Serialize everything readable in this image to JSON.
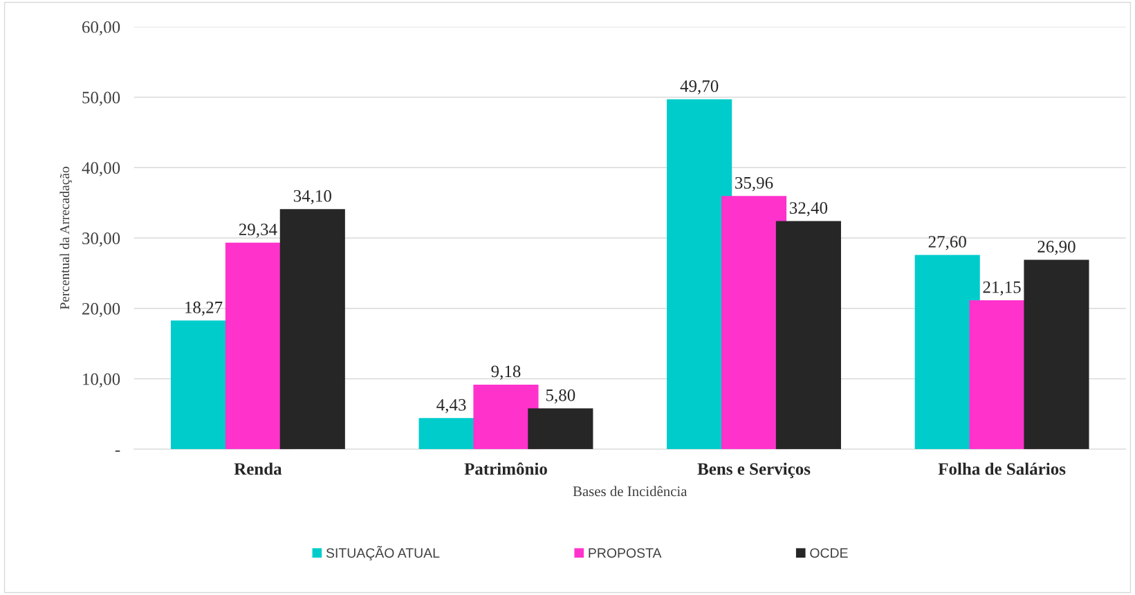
{
  "chart_data": {
    "type": "bar",
    "xlabel": "Bases de Incidência",
    "ylabel": "Percentual da Arrecadação",
    "categories": [
      "Renda",
      "Patrimônio",
      "Bens e Serviços",
      "Folha de Salários"
    ],
    "series": [
      {
        "name": "SITUAÇÃO ATUAL",
        "color": "#00cccc",
        "values": [
          18.27,
          4.43,
          49.7,
          27.6
        ],
        "value_labels": [
          "18,27",
          "4,43",
          "49,70",
          "27,60"
        ]
      },
      {
        "name": "PROPOSTA",
        "color": "#ff33cc",
        "values": [
          29.34,
          9.18,
          35.96,
          21.15
        ],
        "value_labels": [
          "29,34",
          "9,18",
          "35,96",
          "21,15"
        ]
      },
      {
        "name": "OCDE",
        "color": "#262626",
        "values": [
          34.1,
          5.8,
          32.4,
          26.9
        ],
        "value_labels": [
          "34,10",
          "5,80",
          "32,40",
          "26,90"
        ]
      }
    ],
    "ylim": [
      0,
      60
    ],
    "yticks": [
      {
        "value": 0,
        "label": "-"
      },
      {
        "value": 10,
        "label": "10,00"
      },
      {
        "value": 20,
        "label": "20,00"
      },
      {
        "value": 30,
        "label": "30,00"
      },
      {
        "value": 40,
        "label": "40,00"
      },
      {
        "value": 50,
        "label": "50,00"
      },
      {
        "value": 60,
        "label": "60,00"
      }
    ],
    "grid": "y",
    "legend": "bottom"
  }
}
